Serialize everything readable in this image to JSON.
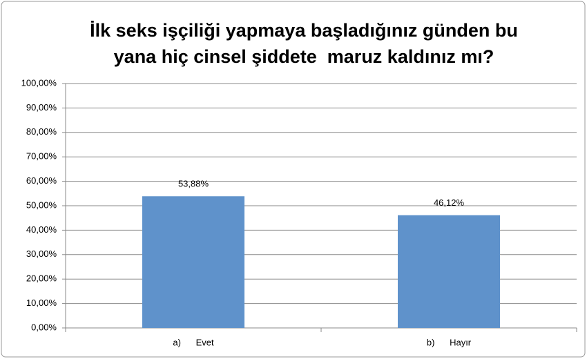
{
  "chart_data": {
    "type": "bar",
    "title": [
      "İlk seks işçiliği yapmaya başladığınız günden bu",
      "yana hiç cinsel şiddete  maruz kaldınız mı?"
    ],
    "categories": [
      "a)      Evet",
      "b)      Hayır"
    ],
    "values": [
      53.88,
      46.12
    ],
    "value_labels": [
      "53,88%",
      "46,12%"
    ],
    "color": "#5f92cb",
    "ylim": [
      0,
      100
    ],
    "yticks": [
      {
        "value": 0,
        "label": "0,00%"
      },
      {
        "value": 10,
        "label": "10,00%"
      },
      {
        "value": 20,
        "label": "20,00%"
      },
      {
        "value": 30,
        "label": "30,00%"
      },
      {
        "value": 40,
        "label": "40,00%"
      },
      {
        "value": 50,
        "label": "50,00%"
      },
      {
        "value": 60,
        "label": "60,00%"
      },
      {
        "value": 70,
        "label": "70,00%"
      },
      {
        "value": 80,
        "label": "80,00%"
      },
      {
        "value": 90,
        "label": "90,00%"
      },
      {
        "value": 100,
        "label": "100,00%"
      }
    ],
    "grid": true
  }
}
